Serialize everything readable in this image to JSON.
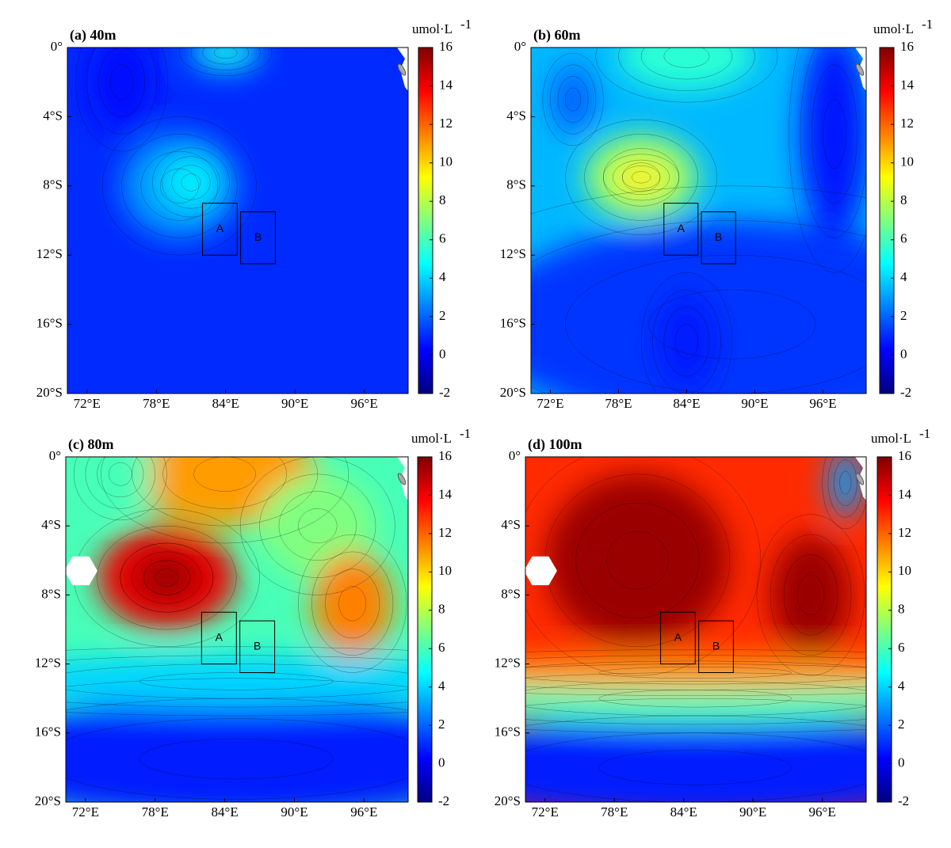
{
  "chart_data": {
    "type": "contour-map",
    "colorbar": {
      "label": "umol·L",
      "label_superscript": "-1",
      "clim": [
        -2,
        16
      ],
      "ticks": [
        -2,
        0,
        2,
        4,
        6,
        8,
        10,
        12,
        14,
        16
      ]
    },
    "xlim": [
      70.3,
      99.8
    ],
    "ylim": [
      -20,
      0
    ],
    "xticks": [
      {
        "value": 72,
        "label": "72°E"
      },
      {
        "value": 78,
        "label": "78°E"
      },
      {
        "value": 84,
        "label": "84°E"
      },
      {
        "value": 90,
        "label": "90°E"
      },
      {
        "value": 96,
        "label": "96°E"
      }
    ],
    "yticks": [
      {
        "value": 0,
        "label": "0°"
      },
      {
        "value": -4,
        "label": "4°S"
      },
      {
        "value": -8,
        "label": "8°S"
      },
      {
        "value": -12,
        "label": "12°S"
      },
      {
        "value": -16,
        "label": "16°S"
      },
      {
        "value": -20,
        "label": "20°S"
      }
    ],
    "regions": [
      {
        "label": "A",
        "lon": [
          82,
          85
        ],
        "lat": [
          -12,
          -9
        ]
      },
      {
        "label": "B",
        "lon": [
          85.3,
          88.3
        ],
        "lat": [
          -12.5,
          -9.5
        ]
      }
    ],
    "panels": [
      {
        "title": "(a) 40m"
      },
      {
        "title": "(b) 60m"
      },
      {
        "title": "(c) 80m"
      },
      {
        "title": "(d) 100m"
      }
    ]
  }
}
